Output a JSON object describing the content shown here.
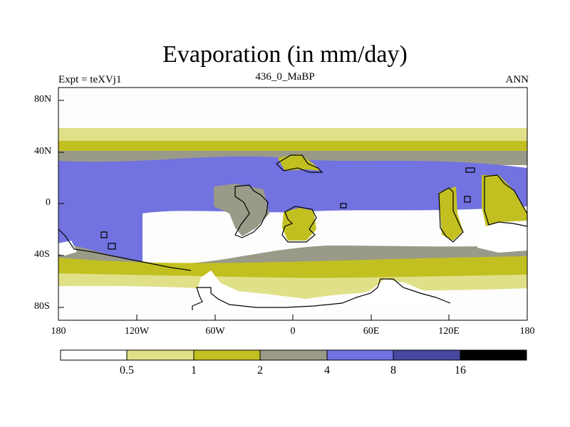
{
  "title": "Evaporation (in mm/day)",
  "subtitle_left": "Expt = teXVj1",
  "subtitle_center": "436_0_MaBP",
  "subtitle_right": "ANN",
  "y_ticks": [
    "80N",
    "40N",
    "0",
    "40S",
    "80S"
  ],
  "x_ticks": [
    "180",
    "120W",
    "60W",
    "0",
    "60E",
    "120E",
    "180"
  ],
  "colorbar": {
    "labels": [
      "0.5",
      "1",
      "2",
      "4",
      "8",
      "16"
    ],
    "colors": [
      "#ffffff",
      "#e0e088",
      "#c2c020",
      "#9a9a88",
      "#7272e0",
      "#4848a0",
      "#000000"
    ]
  },
  "band_colors": {
    "lt05": "#ffffff",
    "b05_1": "#e0e088",
    "b1_2": "#c2c020",
    "b2_4": "#9a9a88",
    "b4_8": "#7272e0",
    "b8_16": "#4848a0"
  }
}
